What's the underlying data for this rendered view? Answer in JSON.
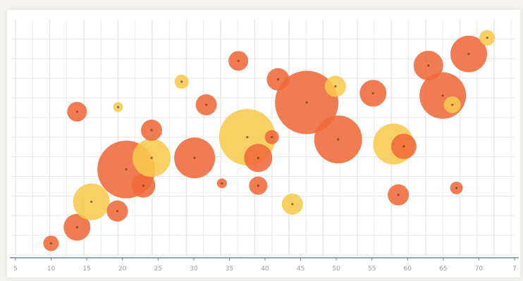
{
  "chart_data": {
    "type": "scatter",
    "title": "",
    "xlabel": "",
    "ylabel": "",
    "grid": true,
    "legend": "none",
    "xlim": [
      0,
      73
    ],
    "ylim": [
      0,
      100
    ],
    "xticks": [
      "5",
      "10",
      "15",
      "20",
      "25",
      "30",
      "35",
      "40",
      "45",
      "50",
      "55",
      "60",
      "65",
      "70",
      "7"
    ],
    "colors": {
      "orange": "#ef6a3a",
      "yellow": "#f7c94f",
      "grid": "#e6e6e6",
      "axis": "#7c8794"
    },
    "points": [
      {
        "x": 5.2,
        "y": 5,
        "r": 11,
        "color": "orange"
      },
      {
        "x": 9.0,
        "y": 62,
        "r": 14,
        "color": "orange"
      },
      {
        "x": 9.0,
        "y": 12,
        "r": 19,
        "color": "orange"
      },
      {
        "x": 11.1,
        "y": 23,
        "r": 26,
        "color": "yellow"
      },
      {
        "x": 14.9,
        "y": 19,
        "r": 15,
        "color": "orange"
      },
      {
        "x": 15.0,
        "y": 64,
        "r": 7,
        "color": "yellow"
      },
      {
        "x": 16.2,
        "y": 37,
        "r": 41,
        "color": "orange"
      },
      {
        "x": 18.7,
        "y": 30,
        "r": 17,
        "color": "orange"
      },
      {
        "x": 19.9,
        "y": 42,
        "r": 27,
        "color": "yellow"
      },
      {
        "x": 19.9,
        "y": 54,
        "r": 15,
        "color": "orange"
      },
      {
        "x": 24.3,
        "y": 75,
        "r": 10,
        "color": "yellow"
      },
      {
        "x": 26.2,
        "y": 42,
        "r": 29,
        "color": "orange"
      },
      {
        "x": 27.9,
        "y": 65,
        "r": 15,
        "color": "orange"
      },
      {
        "x": 30.2,
        "y": 31,
        "r": 7,
        "color": "orange"
      },
      {
        "x": 32.6,
        "y": 84,
        "r": 14,
        "color": "orange"
      },
      {
        "x": 33.9,
        "y": 51,
        "r": 40,
        "color": "yellow"
      },
      {
        "x": 35.5,
        "y": 42,
        "r": 20,
        "color": "orange"
      },
      {
        "x": 35.5,
        "y": 30,
        "r": 13,
        "color": "orange"
      },
      {
        "x": 37.5,
        "y": 51,
        "r": 10,
        "color": "orange"
      },
      {
        "x": 38.4,
        "y": 76,
        "r": 16,
        "color": "orange"
      },
      {
        "x": 40.5,
        "y": 22,
        "r": 15,
        "color": "yellow"
      },
      {
        "x": 42.6,
        "y": 66,
        "r": 45,
        "color": "orange"
      },
      {
        "x": 46.8,
        "y": 73,
        "r": 15,
        "color": "yellow"
      },
      {
        "x": 47.2,
        "y": 50,
        "r": 34,
        "color": "orange"
      },
      {
        "x": 52.3,
        "y": 70,
        "r": 19,
        "color": "orange"
      },
      {
        "x": 55.3,
        "y": 48,
        "r": 29,
        "color": "yellow"
      },
      {
        "x": 56.8,
        "y": 47,
        "r": 18,
        "color": "orange"
      },
      {
        "x": 56.0,
        "y": 26,
        "r": 15,
        "color": "orange"
      },
      {
        "x": 60.4,
        "y": 82,
        "r": 21,
        "color": "orange"
      },
      {
        "x": 62.5,
        "y": 69,
        "r": 33,
        "color": "orange"
      },
      {
        "x": 63.9,
        "y": 65,
        "r": 12,
        "color": "yellow"
      },
      {
        "x": 64.5,
        "y": 29,
        "r": 9,
        "color": "orange"
      },
      {
        "x": 66.3,
        "y": 87,
        "r": 26,
        "color": "orange"
      },
      {
        "x": 69.0,
        "y": 94,
        "r": 11,
        "color": "yellow"
      }
    ]
  }
}
